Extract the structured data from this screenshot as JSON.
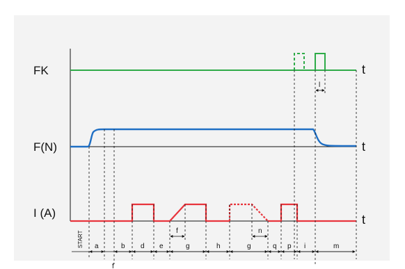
{
  "rows": {
    "fk_label": "FK",
    "f_label": "F(N)",
    "i_label": "I (A)",
    "t_label": "t"
  },
  "colors": {
    "fk": "#2eab48",
    "force": "#1f6fc4",
    "current": "#e8343c",
    "axis": "#111111"
  },
  "segments": {
    "start": "START",
    "a": "a",
    "b": "b",
    "d": "d",
    "e": "e",
    "g1": "g",
    "f": "f",
    "h": "h",
    "g2": "g",
    "n": "n",
    "q": "q",
    "p": "p",
    "i": "i",
    "m": "m",
    "l": "l",
    "f_bottom": "f"
  }
}
